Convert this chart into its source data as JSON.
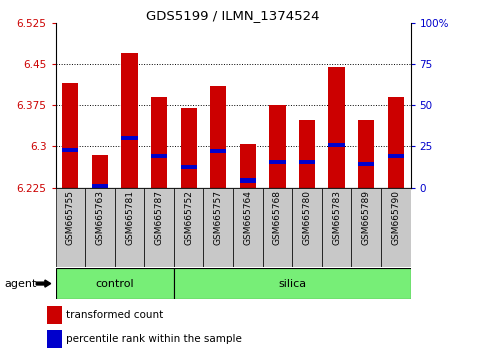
{
  "title": "GDS5199 / ILMN_1374524",
  "samples": [
    "GSM665755",
    "GSM665763",
    "GSM665781",
    "GSM665787",
    "GSM665752",
    "GSM665757",
    "GSM665764",
    "GSM665768",
    "GSM665780",
    "GSM665783",
    "GSM665789",
    "GSM665790"
  ],
  "groups": [
    "control",
    "control",
    "control",
    "control",
    "silica",
    "silica",
    "silica",
    "silica",
    "silica",
    "silica",
    "silica",
    "silica"
  ],
  "bar_values": [
    6.415,
    6.285,
    6.47,
    6.39,
    6.37,
    6.41,
    6.305,
    6.375,
    6.348,
    6.445,
    6.348,
    6.39
  ],
  "percentile_values": [
    6.293,
    6.228,
    6.316,
    6.283,
    6.263,
    6.292,
    6.238,
    6.272,
    6.272,
    6.303,
    6.268,
    6.283
  ],
  "bar_color": "#cc0000",
  "percentile_color": "#0000cc",
  "ymin": 6.225,
  "ymax": 6.525,
  "yticks": [
    6.225,
    6.3,
    6.375,
    6.45,
    6.525
  ],
  "ytick_labels": [
    "6.225",
    "6.3",
    "6.375",
    "6.45",
    "6.525"
  ],
  "right_yticks": [
    0,
    25,
    50,
    75,
    100
  ],
  "right_ytick_labels": [
    "0",
    "25",
    "50",
    "75",
    "100%"
  ],
  "grid_values": [
    6.3,
    6.375,
    6.45
  ],
  "group_labels": [
    "control",
    "silica"
  ],
  "control_range": [
    0,
    3
  ],
  "silica_range": [
    4,
    11
  ],
  "group_color": "#77ee77",
  "agent_label": "agent",
  "bar_width": 0.55,
  "legend_red_label": "transformed count",
  "legend_blue_label": "percentile rank within the sample",
  "plot_bg": "#ffffff",
  "tick_label_color_left": "#cc0000",
  "tick_label_color_right": "#0000cc",
  "sample_bg": "#c8c8c8"
}
